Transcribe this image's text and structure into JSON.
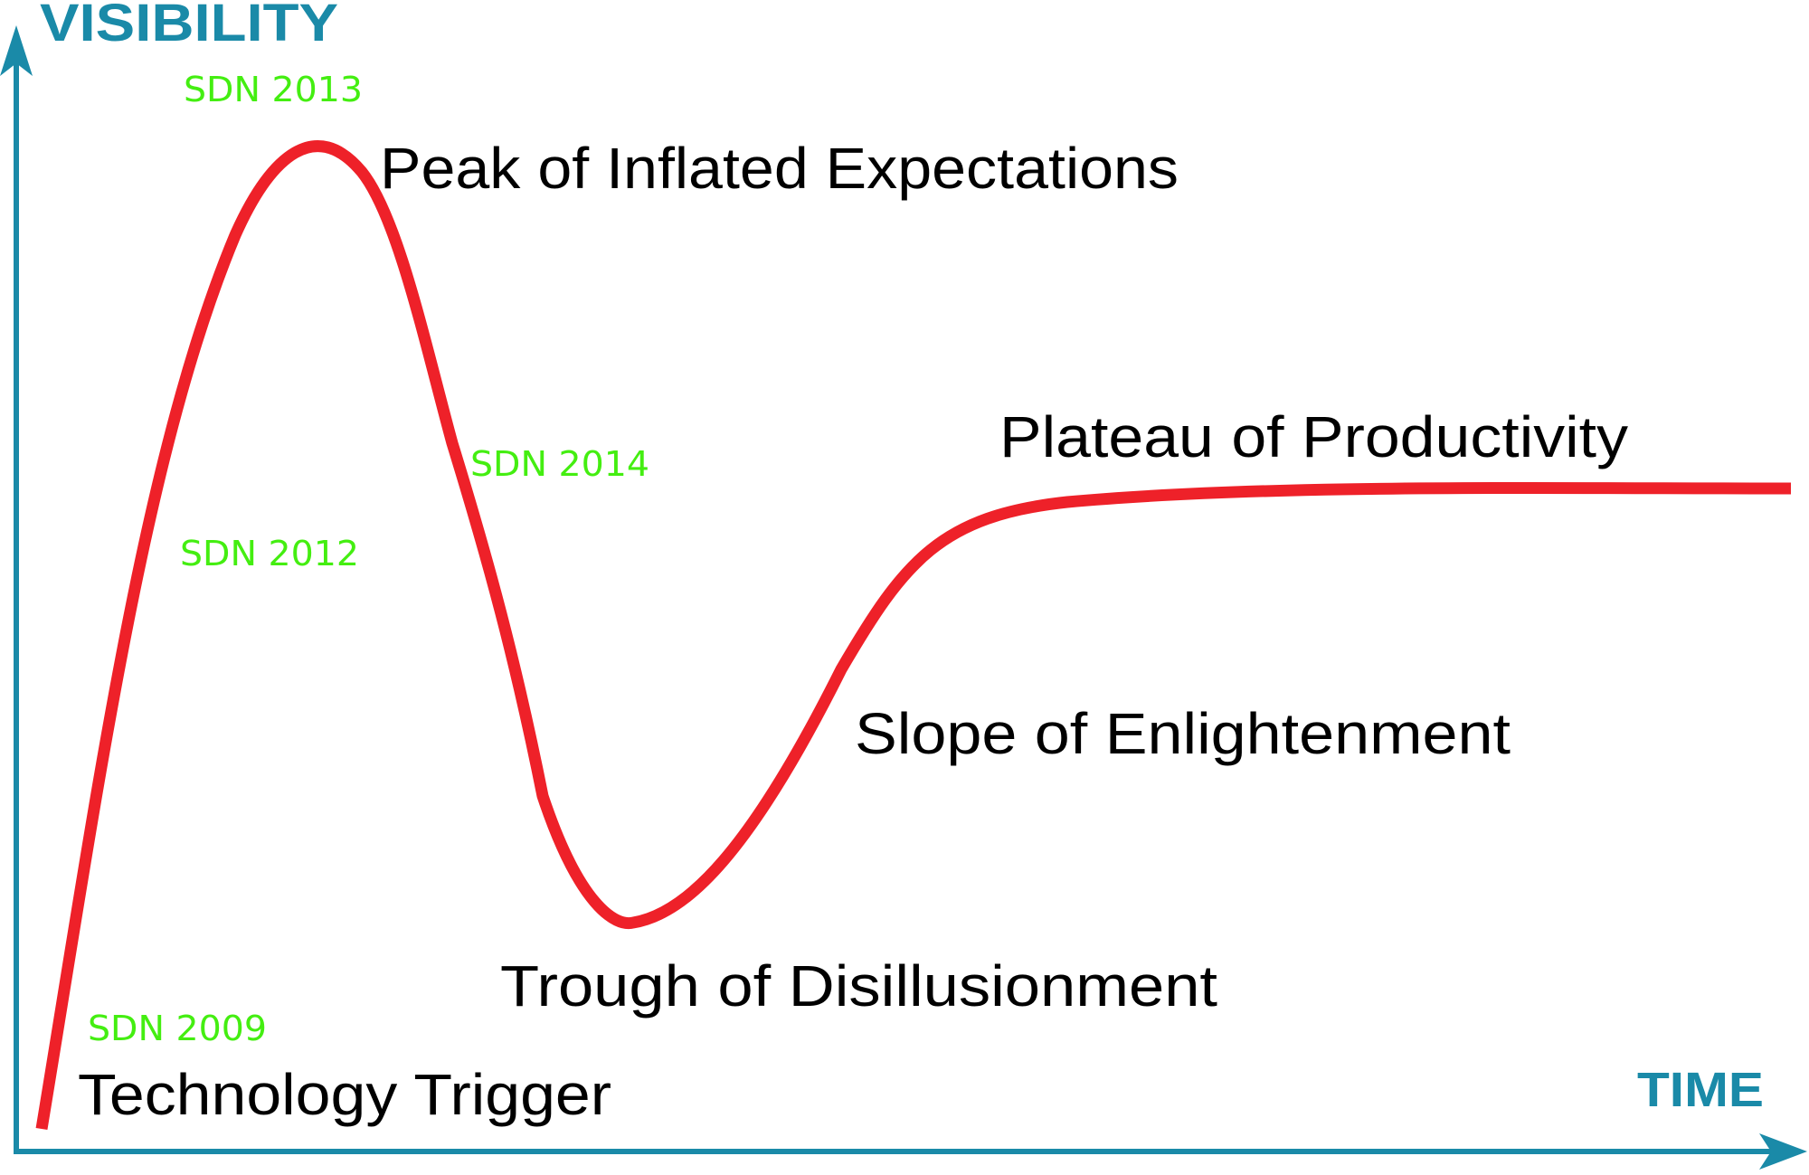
{
  "axes": {
    "y_title": "VISIBILITY",
    "x_title": "TIME"
  },
  "phases": [
    {
      "key": "trigger",
      "label": "Technology Trigger"
    },
    {
      "key": "peak",
      "label": "Peak of Inflated Expectations"
    },
    {
      "key": "trough",
      "label": "Trough of Disillusionment"
    },
    {
      "key": "slope",
      "label": "Slope of Enlightenment"
    },
    {
      "key": "plateau",
      "label": "Plateau of Productivity"
    }
  ],
  "markers": [
    {
      "key": "sdn2009",
      "label": "SDN 2009"
    },
    {
      "key": "sdn2012",
      "label": "SDN 2012"
    },
    {
      "key": "sdn2013",
      "label": "SDN 2013"
    },
    {
      "key": "sdn2014",
      "label": "SDN 2014"
    }
  ],
  "colors": {
    "axis": "#1a8aa8",
    "curve": "#ee2129",
    "phase_text": "#000000",
    "marker_text": "#44ee11"
  }
}
